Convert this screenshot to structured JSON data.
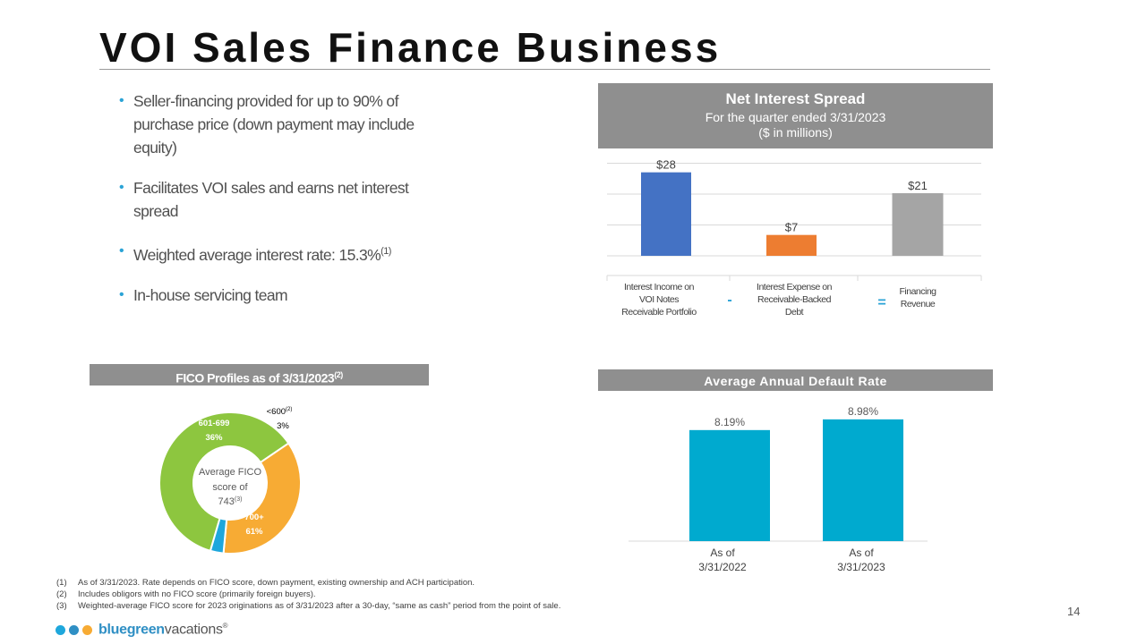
{
  "title": "VOI Sales Finance Business",
  "bullets": [
    {
      "text": "Seller-financing provided for up to 90% of purchase price (down payment may include equity)",
      "sup": ""
    },
    {
      "text": "Facilitates VOI sales and earns net interest spread",
      "sup": ""
    },
    {
      "text": "Weighted average interest rate: 15.3%",
      "sup": "(1)"
    },
    {
      "text": "In-house servicing team",
      "sup": ""
    }
  ],
  "net_interest": {
    "title": "Net Interest Spread",
    "subtitle": "For the quarter ended 3/31/2023",
    "units": "($ in millions)",
    "operator_minus": "-",
    "operator_equals": "="
  },
  "fico": {
    "title": "FICO Profiles  as of 3/31/2023",
    "title_sup": "(2)",
    "center_lines": [
      "Average FICO",
      "score of",
      "743"
    ],
    "center_sup": "(3)"
  },
  "default_rate": {
    "title": "Average  Annual  Default  Rate"
  },
  "chart_data": [
    {
      "type": "bar",
      "title": "Net Interest Spread",
      "categories": [
        "Interest Income on VOI Notes Receivable Portfolio",
        "Interest Expense on Receivable-Backed Debt",
        "Financing Revenue"
      ],
      "category_lines": [
        [
          "Interest Income on",
          "VOI Notes",
          "Receivable Portfolio"
        ],
        [
          "Interest Expense on",
          "Receivable-Backed",
          "Debt"
        ],
        [
          "Financing",
          "Revenue"
        ]
      ],
      "values": [
        28,
        7,
        21
      ],
      "labels": [
        "$28",
        "$7",
        "$21"
      ],
      "colors": [
        "#4472c4",
        "#ed7d31",
        "#a5a5a5"
      ],
      "ylim": [
        0,
        30
      ],
      "grid": true
    },
    {
      "type": "pie",
      "title": "FICO Profiles as of 3/31/2023",
      "slices": [
        {
          "label": "700+",
          "value": 61,
          "pct": "61%",
          "color": "#8dc63f"
        },
        {
          "label": "601-699",
          "value": 36,
          "pct": "36%",
          "color": "#f7ab34"
        },
        {
          "label": "<600",
          "sup": "(2)",
          "value": 3,
          "pct": "3%",
          "color": "#1ea7dc"
        }
      ]
    },
    {
      "type": "bar",
      "title": "Average Annual Default Rate",
      "categories": [
        "As of 3/31/2022",
        "As of 3/31/2023"
      ],
      "category_lines": [
        [
          "As of",
          "3/31/2022"
        ],
        [
          "As of",
          "3/31/2023"
        ]
      ],
      "values": [
        8.19,
        8.98
      ],
      "labels": [
        "8.19%",
        "8.98%"
      ],
      "color": "#00aacf",
      "ylim": [
        0,
        9.3
      ]
    }
  ],
  "footnotes": [
    {
      "num": "(1)",
      "text": "As of 3/31/2023.  Rate depends on FICO  score, down payment, existing ownership and ACH participation."
    },
    {
      "num": "(2)",
      "text": "Includes obligors with no FICO  score (primarily foreign buyers)."
    },
    {
      "num": "(3)",
      "text": "Weighted-average FICO  score for 2023 originations as of 3/31/2023 after a 30-day, “same as cash” period from the point of  sale."
    }
  ],
  "page_number": "14",
  "logo": {
    "bold": "bluegreen",
    "light": "vacations",
    "mark": "®",
    "colors": [
      "#1ea7dc",
      "#2f8fc4",
      "#f7ab34"
    ]
  }
}
